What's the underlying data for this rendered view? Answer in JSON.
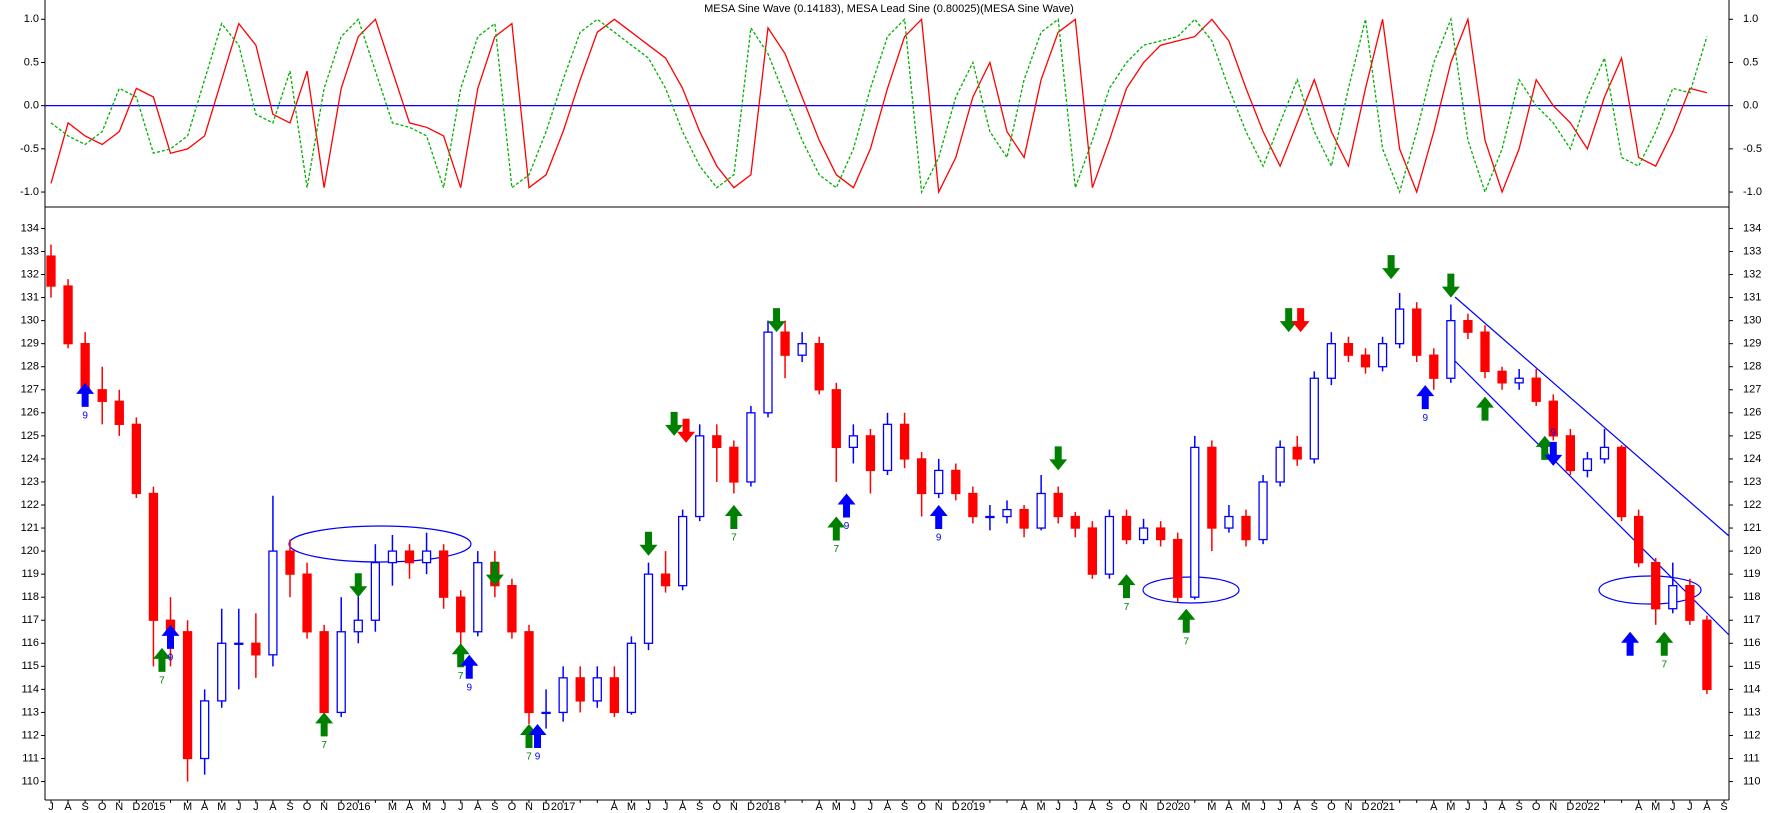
{
  "chart_data": [
    {
      "type": "line",
      "title": "MESA Sine Wave (0.14183), MESA Lead Sine (0.80025)(MESA Sine Wave)",
      "ylim": [
        -1.15,
        1.2
      ],
      "yticks": [
        {
          "value": 1,
          "label": "1.0"
        },
        {
          "value": 0.5,
          "label": "0.5"
        },
        {
          "value": 0,
          "label": "0.0"
        },
        {
          "value": -0.5,
          "label": "-0.5"
        },
        {
          "value": -1,
          "label": "-1.0"
        }
      ],
      "zero_line_color": "#0000ff",
      "series": [
        {
          "name": "MESA Sine Wave",
          "color": "#ff0000",
          "dash": false,
          "values": [
            -0.9,
            -0.2,
            -0.35,
            -0.45,
            -0.3,
            0.2,
            0.1,
            -0.55,
            -0.5,
            -0.35,
            0.3,
            0.95,
            0.7,
            -0.1,
            -0.2,
            0.4,
            -0.95,
            0.2,
            0.8,
            1.0,
            0.4,
            -0.2,
            -0.25,
            -0.35,
            -0.95,
            0.2,
            0.8,
            0.95,
            -0.95,
            -0.8,
            -0.3,
            0.3,
            0.85,
            1.0,
            0.85,
            0.7,
            0.55,
            0.2,
            -0.3,
            -0.7,
            -0.95,
            -0.8,
            0.9,
            0.6,
            0.1,
            -0.4,
            -0.8,
            -0.95,
            -0.5,
            0.2,
            0.8,
            1.0,
            -1.0,
            -0.6,
            0.1,
            0.5,
            -0.3,
            -0.6,
            0.3,
            0.85,
            1.0,
            -0.95,
            -0.4,
            0.2,
            0.5,
            0.7,
            0.75,
            0.8,
            1.0,
            0.75,
            0.2,
            -0.3,
            -0.7,
            -0.2,
            0.3,
            -0.3,
            -0.7,
            0.2,
            1.0,
            -0.5,
            -1.0,
            -0.3,
            0.5,
            1.0,
            -0.4,
            -1.0,
            -0.5,
            0.3,
            0.0,
            -0.2,
            -0.5,
            0.1,
            0.55,
            -0.6,
            -0.7,
            -0.3,
            0.2,
            0.15,
            null
          ]
        },
        {
          "name": "MESA Lead Sine",
          "color": "#00b000",
          "dash": true,
          "values": [
            -0.2,
            -0.35,
            -0.45,
            -0.3,
            0.2,
            0.1,
            -0.55,
            -0.5,
            -0.35,
            0.3,
            0.95,
            0.7,
            -0.1,
            -0.2,
            0.4,
            -0.95,
            0.2,
            0.8,
            1.0,
            0.4,
            -0.2,
            -0.25,
            -0.35,
            -0.95,
            0.2,
            0.8,
            0.95,
            -0.95,
            -0.8,
            -0.3,
            0.3,
            0.85,
            1.0,
            0.85,
            0.7,
            0.55,
            0.2,
            -0.3,
            -0.7,
            -0.95,
            -0.8,
            0.9,
            0.6,
            0.1,
            -0.4,
            -0.8,
            -0.95,
            -0.5,
            0.2,
            0.8,
            1.0,
            -1.0,
            -0.6,
            0.1,
            0.5,
            -0.3,
            -0.6,
            0.3,
            0.85,
            1.0,
            -0.95,
            -0.4,
            0.2,
            0.5,
            0.7,
            0.75,
            0.8,
            1.0,
            0.75,
            0.2,
            -0.3,
            -0.7,
            -0.2,
            0.3,
            -0.3,
            -0.7,
            0.2,
            1.0,
            -0.5,
            -1.0,
            -0.3,
            0.5,
            1.0,
            -0.4,
            -1.0,
            -0.5,
            0.3,
            0.0,
            -0.2,
            -0.5,
            0.1,
            0.55,
            -0.6,
            -0.7,
            -0.3,
            0.2,
            0.15,
            0.8,
            null
          ]
        }
      ]
    },
    {
      "type": "candlestick",
      "ylim": [
        109.2,
        134.8
      ],
      "yticks": [
        110,
        111,
        112,
        113,
        114,
        115,
        116,
        117,
        118,
        119,
        120,
        121,
        122,
        123,
        124,
        125,
        126,
        127,
        128,
        129,
        130,
        131,
        132,
        133,
        134
      ],
      "up_color": "#0000ff",
      "down_color": "#ff0000",
      "categories": [
        "J",
        "A",
        "S",
        "O",
        "N",
        "D",
        "2015",
        null,
        "M",
        "A",
        "M",
        "J",
        "J",
        "A",
        "S",
        "O",
        "N",
        "D",
        "2016",
        null,
        "M",
        "A",
        "M",
        "J",
        "J",
        "A",
        "S",
        "O",
        "N",
        "D",
        "2017",
        null,
        null,
        "A",
        "M",
        "J",
        "J",
        "A",
        "S",
        "O",
        "N",
        "D",
        "2018",
        null,
        null,
        "A",
        "M",
        "J",
        "J",
        "A",
        "S",
        "O",
        "N",
        "D",
        "2019",
        null,
        null,
        "A",
        "M",
        "J",
        "J",
        "A",
        "S",
        "O",
        "N",
        "D",
        "2020",
        null,
        "M",
        "A",
        "M",
        "J",
        "J",
        "A",
        "S",
        "O",
        "N",
        "D",
        "2021",
        null,
        null,
        "A",
        "M",
        "J",
        "J",
        "A",
        "S",
        "O",
        "N",
        "D",
        "2022",
        null,
        null,
        "A",
        "M",
        "J",
        "J",
        "A",
        "S"
      ],
      "open": [
        132.8,
        131.5,
        129,
        127,
        126.5,
        125.5,
        122.5,
        117,
        116.5,
        111,
        113.5,
        116,
        116,
        115.5,
        120,
        119,
        116.5,
        113,
        116.5,
        117,
        119.5,
        120,
        119.5,
        120,
        118,
        116.5,
        119.5,
        118.5,
        116.5,
        113,
        113,
        114.5,
        113.5,
        114.5,
        113,
        116,
        119,
        118.5,
        121.5,
        125,
        124.5,
        123,
        126,
        129.5,
        128.5,
        129,
        127,
        124.5,
        125,
        123.5,
        125.5,
        124,
        122.5,
        123.5,
        122.5,
        121.5,
        121.5,
        121.8,
        121,
        122.5,
        121.5,
        121,
        119,
        121.5,
        120.5,
        121,
        120.5,
        118,
        124.5,
        121,
        121.5,
        120.5,
        123,
        124.5,
        124,
        127.5,
        129,
        128.5,
        128,
        129,
        130.5,
        128.5,
        127.5,
        130,
        129.5,
        127.8,
        127.3,
        127.5,
        126.5,
        125,
        123.5,
        124,
        124.5,
        121.5,
        119.5,
        117.5,
        118.5,
        117,
        null
      ],
      "high": [
        133.3,
        131.8,
        129.5,
        128,
        127,
        125.8,
        122.8,
        118,
        117,
        114,
        117.5,
        117.5,
        117.3,
        122.4,
        120.5,
        119.5,
        116.8,
        118,
        118.5,
        120.3,
        120.7,
        120.3,
        120.8,
        120.3,
        118.3,
        120,
        120,
        118.8,
        116.8,
        114,
        115,
        115,
        115,
        115,
        116.3,
        119.5,
        120,
        121.8,
        125.5,
        125.5,
        124.8,
        126.3,
        130,
        130,
        129.5,
        129.3,
        127.3,
        125.5,
        125.3,
        126,
        126,
        124.3,
        124,
        123.8,
        122.8,
        122,
        122.2,
        122,
        123.3,
        122.8,
        121.7,
        121.3,
        121.8,
        121.8,
        121.4,
        121.3,
        120.8,
        125,
        124.8,
        122,
        121.8,
        123.3,
        124.8,
        125,
        127.8,
        129.5,
        129.3,
        128.8,
        129.3,
        131.2,
        130.8,
        128.8,
        130.7,
        130.3,
        129.8,
        128,
        127.9,
        127.9,
        126.8,
        125.3,
        124.3,
        125.3,
        124.6,
        121.8,
        119.7,
        119.5,
        118.8,
        117.2,
        null
      ],
      "low": [
        131,
        128.8,
        126.8,
        125.5,
        125,
        122.3,
        115,
        115,
        110,
        110.3,
        113.2,
        114,
        114.5,
        115,
        118,
        116.2,
        112.8,
        112.8,
        116,
        116.5,
        118.5,
        118.8,
        119,
        117.5,
        115.5,
        116.3,
        118,
        116.2,
        112.5,
        112.3,
        112.6,
        113,
        113.2,
        112.8,
        112.9,
        115.7,
        118.2,
        118.3,
        121.3,
        123,
        122.5,
        122.8,
        125.8,
        127.5,
        128.2,
        126.8,
        123,
        123.8,
        122.5,
        123.3,
        123.6,
        121.5,
        122.3,
        122.2,
        121.2,
        120.9,
        121.2,
        120.6,
        120.9,
        121.2,
        120.6,
        118.8,
        118.8,
        120.3,
        120.3,
        120.2,
        117.8,
        117.9,
        120,
        120.8,
        120.2,
        120.3,
        122.8,
        123.7,
        123.8,
        127.2,
        128.2,
        127.7,
        127.8,
        128.8,
        128.2,
        127,
        127.3,
        129.2,
        127.5,
        127,
        127,
        126.3,
        124.8,
        123.3,
        123.2,
        123.8,
        121.3,
        119.3,
        116.8,
        117.3,
        116.8,
        113.8,
        null
      ],
      "close": [
        131.5,
        129,
        127,
        126.5,
        125.5,
        122.5,
        117,
        116.5,
        111,
        113.5,
        116,
        116,
        115.5,
        120,
        119,
        116.5,
        113,
        116.5,
        117,
        119.5,
        120,
        119.5,
        120,
        118,
        116.5,
        119.5,
        118.5,
        116.5,
        113,
        113,
        114.5,
        113.5,
        114.5,
        113,
        116,
        119,
        118.5,
        121.5,
        125,
        124.5,
        123,
        126,
        129.5,
        128.5,
        129,
        127,
        124.5,
        125,
        123.5,
        125.5,
        124,
        122.5,
        123.5,
        122.5,
        121.5,
        121.5,
        121.8,
        121,
        122.5,
        121.5,
        121,
        119,
        121.5,
        120.5,
        121,
        120.5,
        118,
        124.5,
        121,
        121.5,
        120.5,
        123,
        124.5,
        124,
        127.5,
        129,
        128.5,
        128,
        129,
        130.5,
        128.5,
        127.5,
        130,
        129.5,
        127.8,
        127.3,
        127.5,
        126.5,
        125,
        123.5,
        124,
        124.5,
        121.5,
        119.5,
        117.5,
        118.5,
        117,
        114,
        null
      ],
      "signals": [
        {
          "x": 2,
          "y": 127.3,
          "dir": "up",
          "color": "#0000ff",
          "label": "9"
        },
        {
          "x": 6.5,
          "y": 115.8,
          "dir": "up",
          "color": "#008000",
          "label": "7"
        },
        {
          "x": 7,
          "y": 116.8,
          "dir": "up",
          "color": "#0000ff",
          "label": "9"
        },
        {
          "x": 16,
          "y": 113,
          "dir": "up",
          "color": "#008000",
          "label": "7"
        },
        {
          "x": 18,
          "y": 118,
          "dir": "down",
          "color": "#008000"
        },
        {
          "x": 24,
          "y": 116,
          "dir": "up",
          "color": "#008000",
          "label": "7"
        },
        {
          "x": 24.5,
          "y": 115.5,
          "dir": "up",
          "color": "#0000ff",
          "label": "9"
        },
        {
          "x": 26,
          "y": 118.5,
          "dir": "down",
          "color": "#008000"
        },
        {
          "x": 28,
          "y": 112.5,
          "dir": "up",
          "color": "#008000",
          "label": "7"
        },
        {
          "x": 28.5,
          "y": 112.5,
          "dir": "up",
          "color": "#0000ff",
          "label": "9"
        },
        {
          "x": 35,
          "y": 119.8,
          "dir": "down",
          "color": "#008000"
        },
        {
          "x": 36.5,
          "y": 125,
          "dir": "down",
          "color": "#008000"
        },
        {
          "x": 37.2,
          "y": 124.7,
          "dir": "down",
          "color": "#ff0000"
        },
        {
          "x": 40,
          "y": 122,
          "dir": "up",
          "color": "#008000",
          "label": "7"
        },
        {
          "x": 42.5,
          "y": 129.5,
          "dir": "down",
          "color": "#008000"
        },
        {
          "x": 46,
          "y": 121.5,
          "dir": "up",
          "color": "#008000",
          "label": "7"
        },
        {
          "x": 46.6,
          "y": 122.5,
          "dir": "up",
          "color": "#0000ff",
          "label": "9"
        },
        {
          "x": 52,
          "y": 122,
          "dir": "up",
          "color": "#0000ff",
          "label": "9"
        },
        {
          "x": 59,
          "y": 123.5,
          "dir": "down",
          "color": "#008000"
        },
        {
          "x": 63,
          "y": 119,
          "dir": "up",
          "color": "#008000",
          "label": "7"
        },
        {
          "x": 66.5,
          "y": 117.5,
          "dir": "up",
          "color": "#008000",
          "label": "7"
        },
        {
          "x": 72.5,
          "y": 129.5,
          "dir": "down",
          "color": "#008000"
        },
        {
          "x": 73.2,
          "y": 129.5,
          "dir": "down",
          "color": "#ff0000"
        },
        {
          "x": 78.5,
          "y": 131.8,
          "dir": "down",
          "color": "#008000"
        },
        {
          "x": 80.5,
          "y": 127.2,
          "dir": "up",
          "color": "#0000ff",
          "label": "9"
        },
        {
          "x": 82,
          "y": 131,
          "dir": "down",
          "color": "#008000"
        },
        {
          "x": 84,
          "y": 126.7,
          "dir": "up",
          "color": "#008000"
        },
        {
          "x": 87.5,
          "y": 125,
          "dir": "up",
          "color": "#008000"
        },
        {
          "x": 88,
          "y": 123.7,
          "dir": "down",
          "color": "#0000ff",
          "label": "9"
        },
        {
          "x": 92.5,
          "y": 116.5,
          "dir": "up",
          "color": "#0000ff"
        },
        {
          "x": 94.5,
          "y": 116.5,
          "dir": "up",
          "color": "#008000",
          "label": "7"
        }
      ]
    }
  ]
}
